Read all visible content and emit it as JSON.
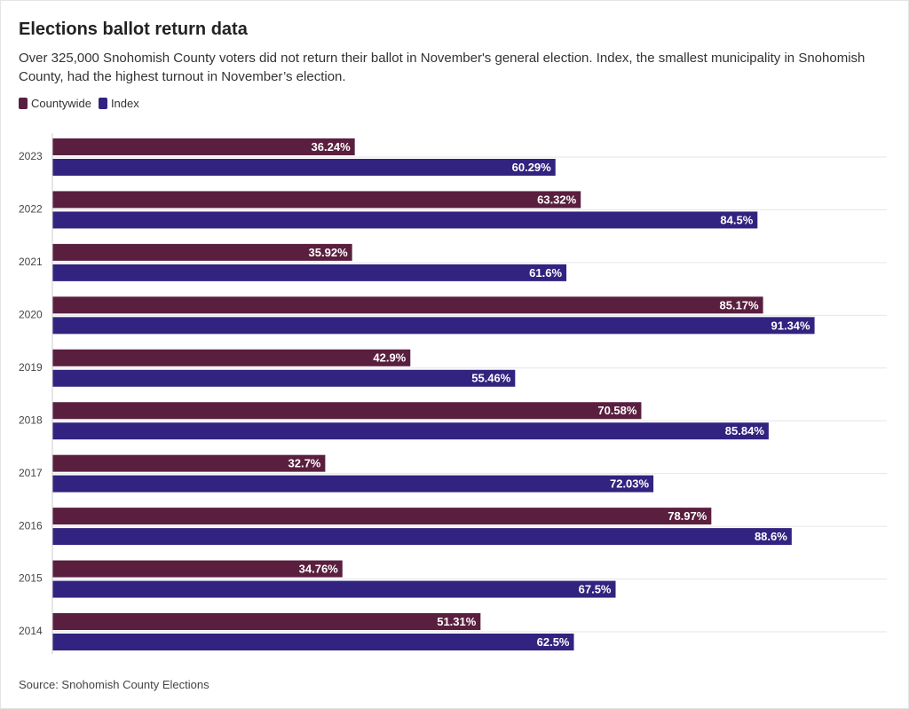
{
  "chart_data": {
    "type": "bar",
    "title": "Elections ballot return data",
    "subtitle": "Over 325,000 Snohomish County voters did not return their ballot in November's general election. Index, the smallest municipality in Snohomish County, had the highest turnout in November’s election.",
    "source": "Source: Snohomish County Elections",
    "categories": [
      "2023",
      "2022",
      "2021",
      "2020",
      "2019",
      "2018",
      "2017",
      "2016",
      "2015",
      "2014"
    ],
    "series": [
      {
        "name": "Countywide",
        "color": "#5a1f3f",
        "values": [
          36.24,
          63.32,
          35.92,
          85.17,
          42.9,
          70.58,
          32.7,
          78.97,
          34.76,
          51.31
        ],
        "value_labels": [
          "36.24%",
          "63.32%",
          "35.92%",
          "85.17%",
          "42.9%",
          "70.58%",
          "32.7%",
          "78.97%",
          "34.76%",
          "51.31%"
        ]
      },
      {
        "name": "Index",
        "color": "#31237f",
        "values": [
          60.29,
          84.5,
          61.6,
          91.34,
          55.46,
          85.84,
          72.03,
          88.6,
          67.5,
          62.5
        ],
        "value_labels": [
          "60.29%",
          "84.5%",
          "61.6%",
          "91.34%",
          "55.46%",
          "85.84%",
          "72.03%",
          "88.6%",
          "67.5%",
          "62.5%"
        ]
      }
    ],
    "xlim": [
      0,
      100
    ]
  }
}
